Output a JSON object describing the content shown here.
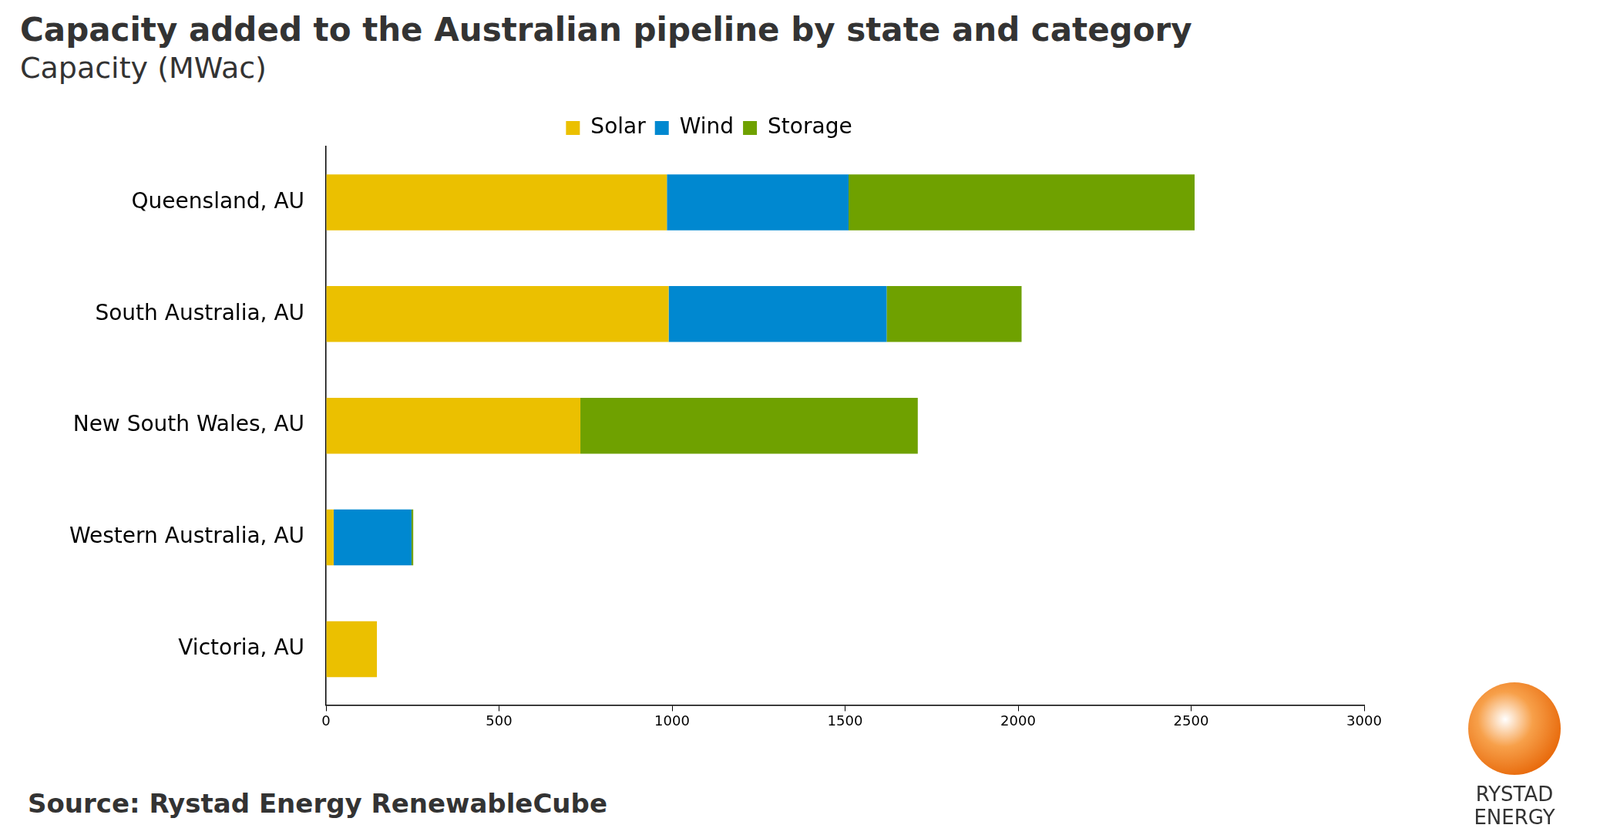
{
  "chart_data": {
    "type": "bar",
    "orientation": "horizontal",
    "stacked": true,
    "title": "Capacity added to the Australian pipeline by state and category",
    "subtitle": "Capacity (MWac)",
    "source": "Source: Rystad Energy RenewableCube",
    "logo": "RYSTAD ENERGY",
    "categories": [
      "Queensland, AU",
      "South Australia, AU",
      "New South Wales, AU",
      "Western Australia, AU",
      "Victoria, AU"
    ],
    "series": [
      {
        "name": "Solar",
        "color": "#ebc000",
        "values": [
          985,
          990,
          735,
          22,
          147
        ]
      },
      {
        "name": "Wind",
        "color": "#0088d0",
        "values": [
          525,
          630,
          0,
          225,
          0
        ]
      },
      {
        "name": "Storage",
        "color": "#6fa100",
        "values": [
          1000,
          390,
          975,
          5,
          0
        ]
      }
    ],
    "xlim": [
      0,
      3000
    ],
    "xticks": [
      0,
      500,
      1000,
      1500,
      2000,
      2500,
      3000
    ],
    "grid": false,
    "legend": "top"
  }
}
